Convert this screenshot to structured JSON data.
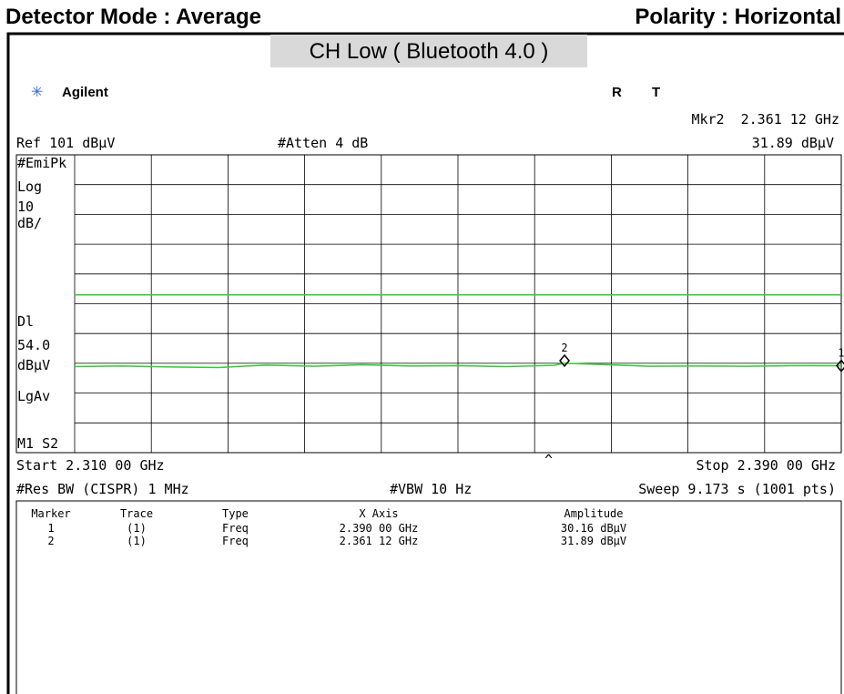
{
  "header": {
    "left": "Detector Mode : Average",
    "right": "Polarity : Horizontal"
  },
  "banner": "CH Low ( Bluetooth 4.0 )",
  "status": {
    "brand": "Agilent",
    "r": "R",
    "t": "T"
  },
  "top": {
    "marker_readout": "Mkr2  2.361 12 GHz",
    "ref": "Ref 101 dBµV",
    "atten": "#Atten 4 dB",
    "amplitude_readout": "31.89 dBµV"
  },
  "side_labels": [
    "#EmiPk",
    "Log",
    "10",
    "dB/",
    "Dl",
    "54.0",
    "dBµV",
    "LgAv",
    "M1 S2"
  ],
  "bottom": {
    "start": "Start 2.310 00 GHz",
    "stop": "Stop 2.390 00 GHz",
    "caret": "^",
    "rbw": "#Res BW (CISPR) 1 MHz",
    "vbw": "#VBW 10 Hz",
    "sweep": "Sweep 9.173 s (1001 pts)"
  },
  "table": {
    "headers": [
      "Marker",
      "Trace",
      "Type",
      "X Axis",
      "Amplitude"
    ],
    "rows": [
      [
        "1",
        "(1)",
        "Freq",
        "2.390 00 GHz",
        "30.16 dBµV"
      ],
      [
        "2",
        "(1)",
        "Freq",
        "2.361 12 GHz",
        "31.89 dBµV"
      ]
    ]
  },
  "chart_data": {
    "type": "line",
    "xlim": [
      2.31,
      2.39
    ],
    "ylim": [
      1,
      101
    ],
    "display_line": 54,
    "color": "#33cc33",
    "x": [
      2.31,
      2.315,
      2.32,
      2.325,
      2.33,
      2.335,
      2.34,
      2.345,
      2.35,
      2.355,
      2.36,
      2.3611,
      2.365,
      2.37,
      2.375,
      2.38,
      2.385,
      2.39
    ],
    "values": [
      29.9,
      30.1,
      29.8,
      29.6,
      30.4,
      30.0,
      30.5,
      30.1,
      30.2,
      29.9,
      30.3,
      31.0,
      30.6,
      30.0,
      30.1,
      30.0,
      30.2,
      30.16
    ],
    "markers": [
      {
        "name": "1",
        "x": 2.39,
        "y": 30.16
      },
      {
        "name": "2",
        "x": 2.36112,
        "y": 31.89
      }
    ]
  }
}
